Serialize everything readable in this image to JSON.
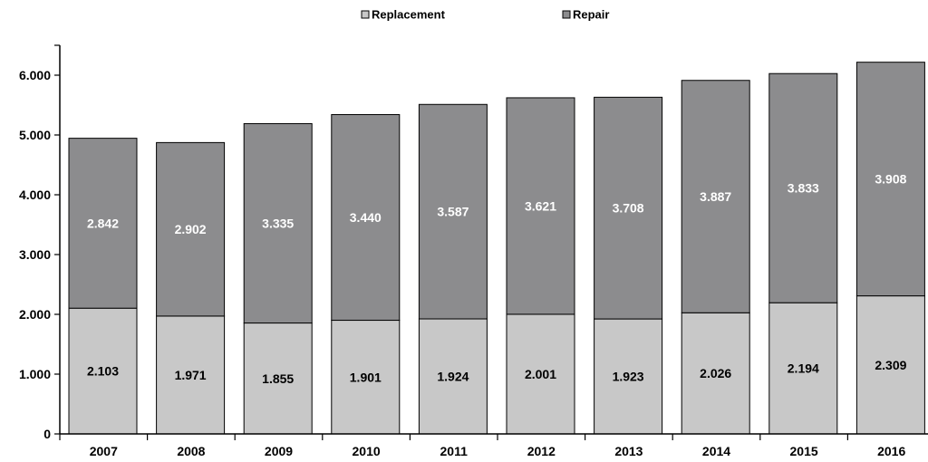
{
  "chart_data": {
    "type": "bar",
    "stacked": true,
    "categories": [
      "2007",
      "2008",
      "2009",
      "2010",
      "2011",
      "2012",
      "2013",
      "2014",
      "2015",
      "2016"
    ],
    "series": [
      {
        "name": "Replacement",
        "color": "#c8c8c8",
        "label_color": "#000000",
        "values": [
          2103,
          1971,
          1855,
          1901,
          1924,
          2001,
          1923,
          2026,
          2194,
          2309
        ],
        "labels": [
          "2.103",
          "1.971",
          "1.855",
          "1.901",
          "1.924",
          "2.001",
          "1.923",
          "2.026",
          "2.194",
          "2.309"
        ]
      },
      {
        "name": "Repair",
        "color": "#8c8c8e",
        "label_color": "#ffffff",
        "values": [
          2842,
          2902,
          3335,
          3440,
          3587,
          3621,
          3708,
          3887,
          3833,
          3908
        ],
        "labels": [
          "2.842",
          "2.902",
          "3.335",
          "3.440",
          "3.587",
          "3.621",
          "3.708",
          "3.887",
          "3.833",
          "3.908"
        ]
      }
    ],
    "y_ticks": [
      0,
      1000,
      2000,
      3000,
      4000,
      5000,
      6000
    ],
    "y_tick_labels": [
      "0",
      "1.000",
      "2.000",
      "3.000",
      "4.000",
      "5.000",
      "6.000"
    ],
    "ylim": [
      0,
      6500
    ],
    "title": "",
    "xlabel": "",
    "ylabel": "",
    "grid": false,
    "legend_position": "top-center"
  }
}
